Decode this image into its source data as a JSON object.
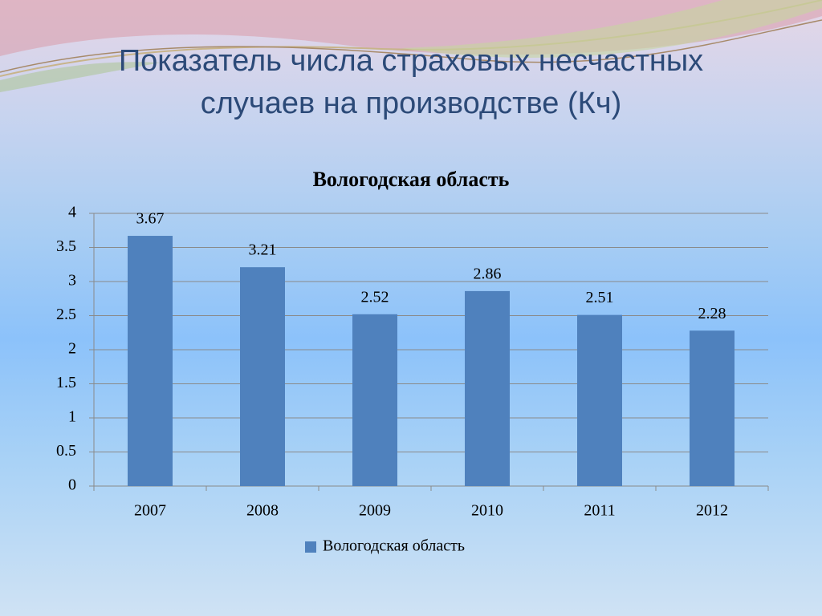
{
  "slide_title": "Показатель числа страховых несчастных случаев на производстве (Кч)",
  "chart_data": {
    "type": "bar",
    "title": "Вологодская область",
    "categories": [
      "2007",
      "2008",
      "2009",
      "2010",
      "2011",
      "2012"
    ],
    "series": [
      {
        "name": "Вологодская область",
        "color": "#4f81bd",
        "values": [
          3.67,
          3.21,
          2.52,
          2.86,
          2.51,
          2.28
        ]
      }
    ],
    "ylim": [
      0,
      4
    ],
    "yticks": [
      0,
      0.5,
      1,
      1.5,
      2,
      2.5,
      3,
      3.5,
      4
    ],
    "grid": true,
    "legend": "bottom"
  }
}
